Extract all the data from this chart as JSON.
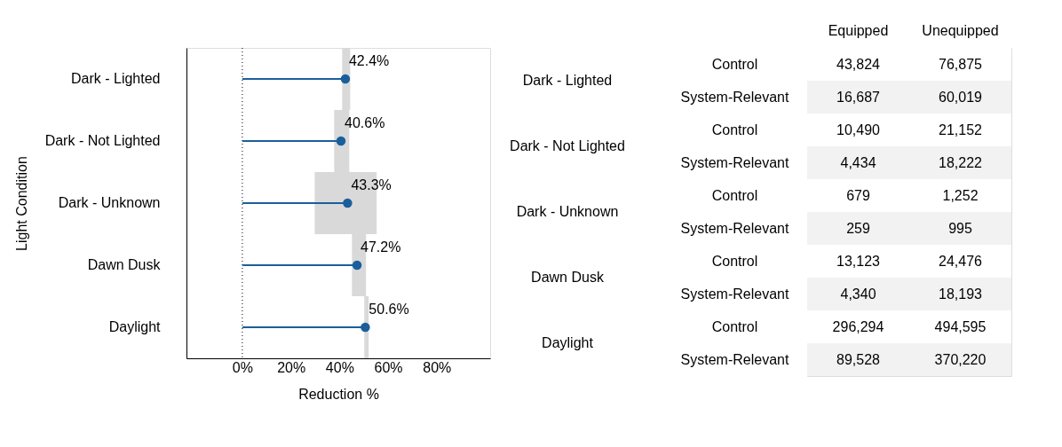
{
  "chart_data": [
    {
      "type": "lollipop",
      "orientation": "horizontal",
      "xlabel": "Reduction %",
      "ylabel": "Light Condition",
      "categories": [
        "Dark - Lighted",
        "Dark - Not Lighted",
        "Dark - Unknown",
        "Dawn Dusk",
        "Daylight"
      ],
      "series": [
        {
          "color": "#1a5f9c",
          "values": [
            42.4,
            40.6,
            43.3,
            47.2,
            50.6
          ],
          "errors": [
            [
              41.1,
              44.4
            ],
            [
              37.8,
              44.0
            ],
            [
              29.8,
              55.3
            ],
            [
              45.1,
              50.9
            ],
            [
              50.2,
              52.0
            ]
          ],
          "value_labels": [
            "42.4%",
            "40.6%",
            "43.3%",
            "47.2%",
            "50.6%"
          ]
        }
      ],
      "xlim": [
        -23,
        102
      ],
      "xticks": [
        {
          "value": 0,
          "label": "0%"
        },
        {
          "value": 20,
          "label": "20%"
        },
        {
          "value": 40,
          "label": "40%"
        },
        {
          "value": 60,
          "label": "60%"
        },
        {
          "value": 80,
          "label": "80%"
        }
      ],
      "ref_lines": [
        {
          "axis": "x",
          "value": 0,
          "line_style": "dotted",
          "color": "#000000"
        }
      ],
      "grid": false,
      "legend": false,
      "marker": "circle"
    },
    {
      "type": "heatmap",
      "categories": [
        "Equipped",
        "Unequipped"
      ],
      "y_categories": [
        "Control",
        "System-Relevant",
        "Control",
        "System-Relevant",
        "Control",
        "System-Relevant",
        "Control",
        "System-Relevant",
        "Control",
        "System-Relevant"
      ],
      "y2_categories": [
        "Dark - Lighted",
        null,
        "Dark - Not Lighted",
        null,
        "Dark - Unknown",
        null,
        "Dawn Dusk",
        null,
        "Daylight",
        null
      ],
      "cells": [
        [
          43824,
          76875
        ],
        [
          16687,
          60019
        ],
        [
          10490,
          21152
        ],
        [
          4434,
          18222
        ],
        [
          679,
          1252
        ],
        [
          259,
          995
        ],
        [
          13123,
          24476
        ],
        [
          4340,
          18193
        ],
        [
          296294,
          494595
        ],
        [
          89528,
          370220
        ]
      ],
      "cell_labels": [
        [
          "43,824",
          "76,875"
        ],
        [
          "16,687",
          "60,019"
        ],
        [
          "10,490",
          "21,152"
        ],
        [
          "4,434",
          "18,222"
        ],
        [
          "679",
          "1,252"
        ],
        [
          "259",
          "995"
        ],
        [
          "13,123",
          "24,476"
        ],
        [
          "4,340",
          "18,193"
        ],
        [
          "296,294",
          "494,595"
        ],
        [
          "89,528",
          "370,220"
        ]
      ],
      "data_labels": true
    }
  ]
}
